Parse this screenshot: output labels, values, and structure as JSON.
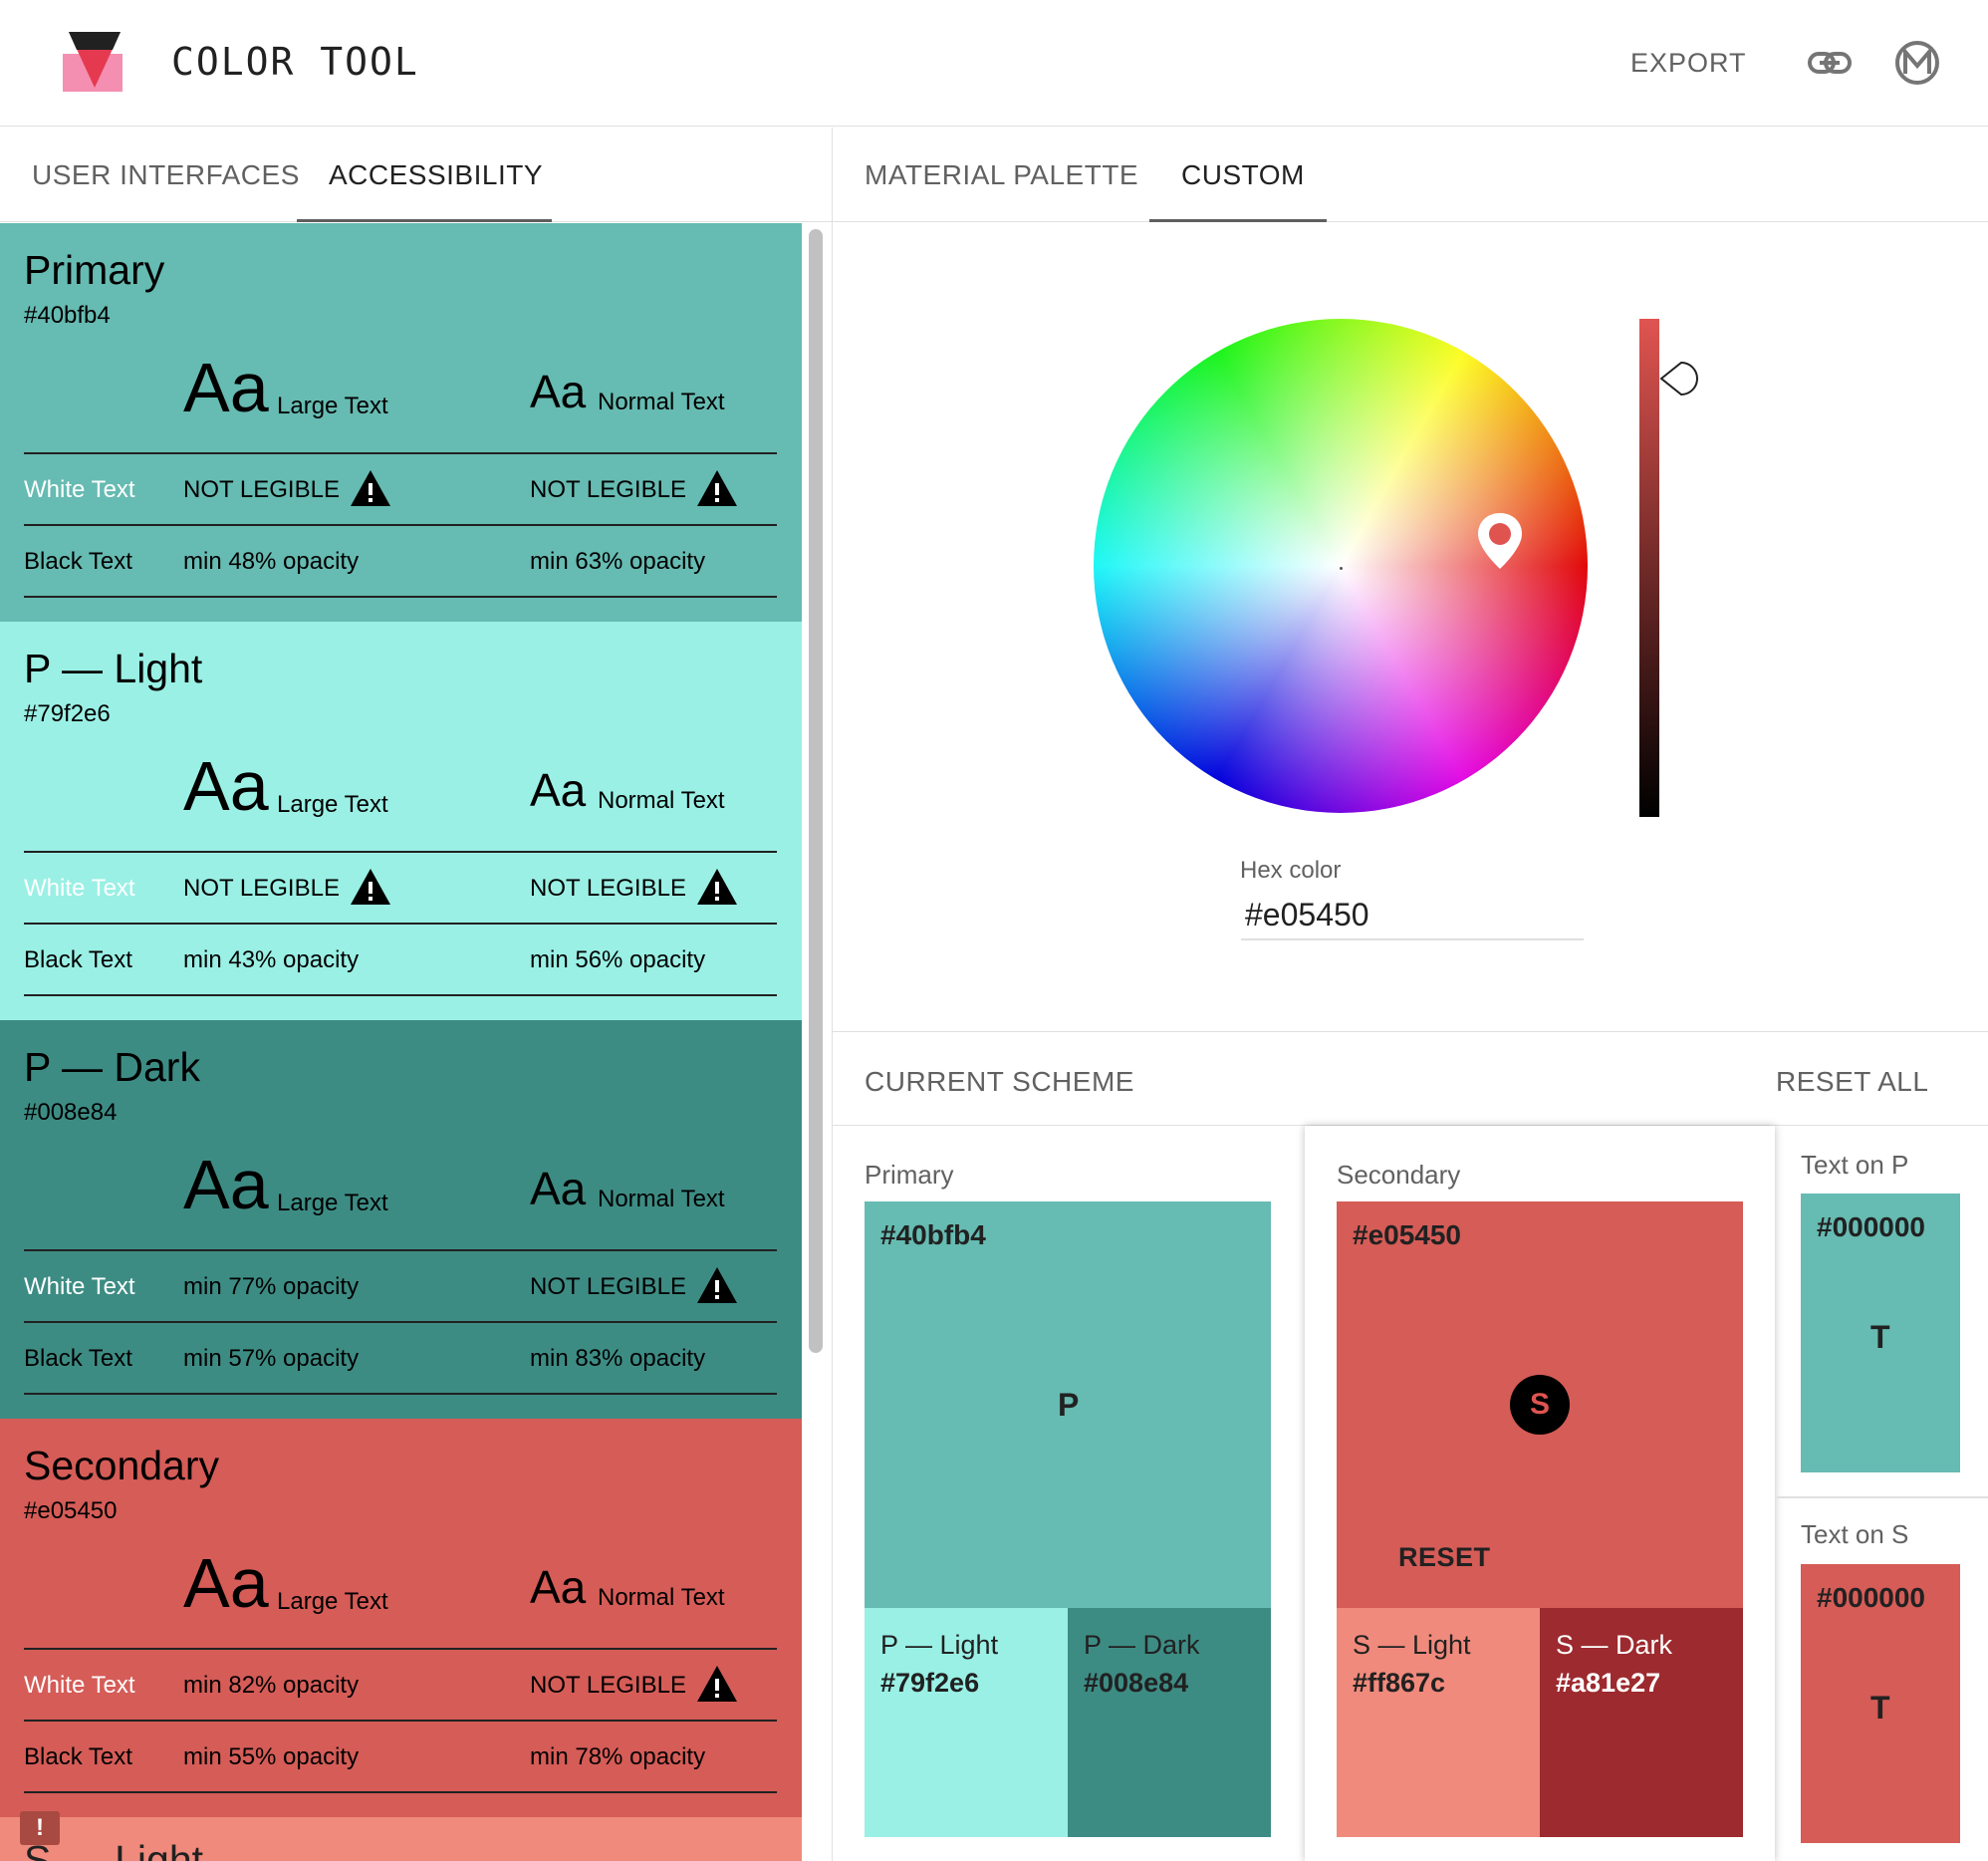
{
  "app": {
    "title": "COLOR TOOL",
    "export_label": "EXPORT"
  },
  "tabs_left": [
    "USER INTERFACES",
    "ACCESSIBILITY"
  ],
  "tabs_right": [
    "MATERIAL PALETTE",
    "CUSTOM"
  ],
  "active_tab_left": "ACCESSIBILITY",
  "active_tab_right": "CUSTOM",
  "accessibility": {
    "large_text_sample": "Aa",
    "large_text_label": "Large Text",
    "normal_text_sample": "Aa",
    "normal_text_label": "Normal Text",
    "white_text_label": "White Text",
    "black_text_label": "Black Text",
    "cards": [
      {
        "name": "Primary",
        "hex": "#40bfb4",
        "bg": "#66bbb2",
        "fg": "#000000",
        "white_label_color": "#ffffff",
        "white_large": "NOT LEGIBLE",
        "white_large_warn": true,
        "white_normal": "NOT LEGIBLE",
        "white_normal_warn": true,
        "black_large": "min 48% opacity",
        "black_normal": "min 63% opacity"
      },
      {
        "name": "P — Light",
        "hex": "#79f2e6",
        "bg": "#9af0e5",
        "fg": "#000000",
        "white_label_color": "#ffffff",
        "white_large": "NOT LEGIBLE",
        "white_large_warn": true,
        "white_normal": "NOT LEGIBLE",
        "white_normal_warn": true,
        "black_large": "min 43% opacity",
        "black_normal": "min 56% opacity"
      },
      {
        "name": "P — Dark",
        "hex": "#008e84",
        "bg": "#3d8c84",
        "fg": "#000000",
        "white_label_color": "#ffffff",
        "white_large": "min 77% opacity",
        "white_large_warn": false,
        "white_normal": "NOT LEGIBLE",
        "white_normal_warn": true,
        "black_large": "min 57% opacity",
        "black_normal": "min 83% opacity"
      },
      {
        "name": "Secondary",
        "hex": "#e05450",
        "bg": "#d55c57",
        "fg": "#000000",
        "white_label_color": "#ffffff",
        "white_large": "min 82% opacity",
        "white_large_warn": false,
        "white_normal": "NOT LEGIBLE",
        "white_normal_warn": true,
        "black_large": "min 55% opacity",
        "black_normal": "min 78% opacity"
      }
    ],
    "peek_title": "S — Light",
    "alert_glyph": "!"
  },
  "picker": {
    "hex_label": "Hex color",
    "hex_value": "#e05450",
    "selected_color": "#e05450",
    "value_level": 0.9
  },
  "scheme": {
    "title": "CURRENT SCHEME",
    "reset_all_label": "RESET ALL",
    "primary": {
      "label": "Primary",
      "hex": "#40bfb4",
      "letter": "P",
      "light_name": "P — Light",
      "light_hex": "#79f2e6",
      "dark_name": "P — Dark",
      "dark_hex": "#008e84"
    },
    "secondary": {
      "label": "Secondary",
      "hex": "#e05450",
      "letter": "S",
      "reset_label": "RESET",
      "light_name": "S — Light",
      "light_hex": "#ff867c",
      "dark_name": "S — Dark",
      "dark_hex": "#a81e27"
    },
    "text_on_p": {
      "label": "Text on P",
      "hex": "#000000",
      "letter": "T"
    },
    "text_on_s": {
      "label": "Text on S",
      "hex": "#000000",
      "letter": "T"
    }
  }
}
